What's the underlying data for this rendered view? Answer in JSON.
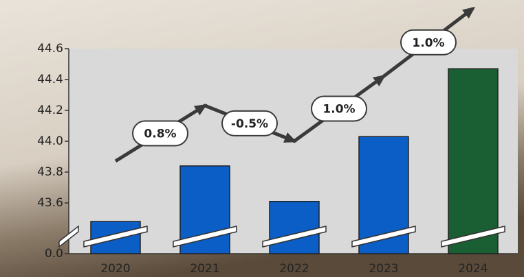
{
  "chart_data": {
    "type": "bar",
    "categories": [
      "2020",
      "2021",
      "2022",
      "2023",
      "2024"
    ],
    "values": [
      43.48,
      43.84,
      43.61,
      44.03,
      44.47
    ],
    "colors": [
      "#0b5ec6",
      "#0b5ec6",
      "#0b5ec6",
      "#0b5ec6",
      "#1a5e33"
    ],
    "change_labels": [
      "0.8%",
      "-0.5%",
      "1.0%",
      "1.0%"
    ],
    "ylim": [
      43.4,
      44.6
    ],
    "yticks": [
      {
        "value": 0,
        "label": "0.0"
      },
      43.6,
      43.8,
      {
        "value": 44,
        "label": "44.0"
      },
      44.2,
      44.4,
      44.6
    ],
    "axis_break": true
  }
}
